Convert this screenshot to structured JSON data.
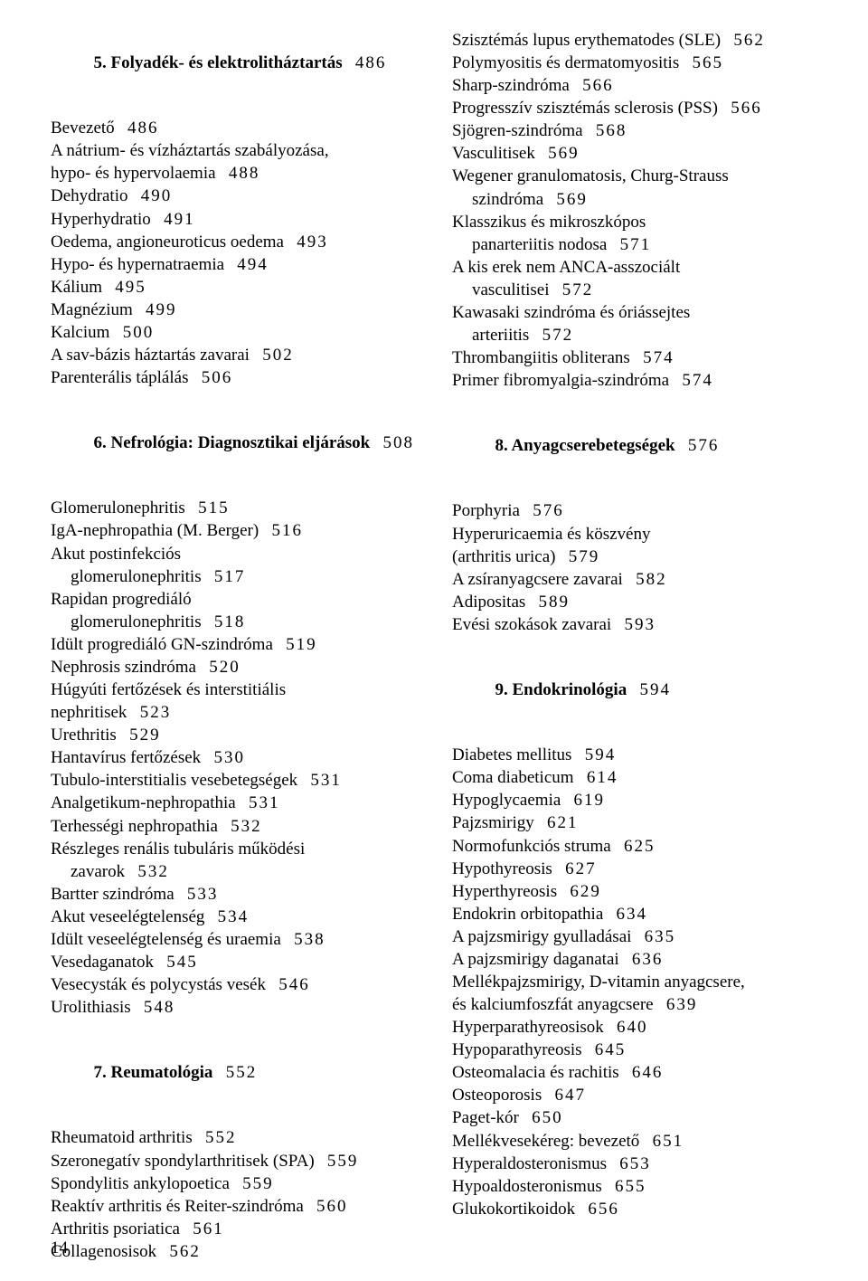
{
  "left": {
    "sec5": {
      "title": "5. Folyadék- és elektrolitháztartás",
      "title_page": "486",
      "items": [
        {
          "t": "Bevezető",
          "p": "486",
          "ind": 0
        },
        {
          "t": "A nátrium- és vízháztartás szabályozása,",
          "ind": 0
        },
        {
          "t": "hypo- és hypervolaemia",
          "p": "488",
          "ind": 1,
          "cont": true
        },
        {
          "t": "Dehydratio",
          "p": "490",
          "ind": 0
        },
        {
          "t": "Hyperhydratio",
          "p": "491",
          "ind": 0
        },
        {
          "t": "Oedema, angioneuroticus oedema",
          "p": "493",
          "ind": 0
        },
        {
          "t": "Hypo- és hypernatraemia",
          "p": "494",
          "ind": 0
        },
        {
          "t": "Kálium",
          "p": "495",
          "ind": 0
        },
        {
          "t": "Magnézium",
          "p": "499",
          "ind": 0
        },
        {
          "t": "Kalcium",
          "p": "500",
          "ind": 0
        },
        {
          "t": "A sav-bázis háztartás zavarai",
          "p": "502",
          "ind": 0
        },
        {
          "t": "Parenterális táplálás",
          "p": "506",
          "ind": 0
        }
      ]
    },
    "sec6": {
      "title": "6. Nefrológia: Diagnosztikai eljárások",
      "title_page": "508",
      "items": [
        {
          "t": "Glomerulonephritis",
          "p": "515",
          "ind": 0
        },
        {
          "t": "IgA-nephropathia (M. Berger)",
          "p": "516",
          "ind": 1
        },
        {
          "t": "Akut postinfekciós",
          "ind": 1
        },
        {
          "t": "glomerulonephritis",
          "p": "517",
          "ind": 2,
          "cont": true
        },
        {
          "t": "Rapidan progrediáló",
          "ind": 1
        },
        {
          "t": "glomerulonephritis",
          "p": "518",
          "ind": 2,
          "cont": true
        },
        {
          "t": "Idült progrediáló GN-szindróma",
          "p": "519",
          "ind": 1
        },
        {
          "t": "Nephrosis szindróma",
          "p": "520",
          "ind": 1
        },
        {
          "t": "Húgyúti fertőzések és interstitiális",
          "ind": 0
        },
        {
          "t": "nephritisek",
          "p": "523",
          "ind": 1,
          "cont": true
        },
        {
          "t": "Urethritis",
          "p": "529",
          "ind": 1
        },
        {
          "t": "Hantavírus fertőzések",
          "p": "530",
          "ind": 1
        },
        {
          "t": "Tubulo-interstitialis vesebetegségek",
          "p": "531",
          "ind": 1
        },
        {
          "t": "Analgetikum-nephropathia",
          "p": "531",
          "ind": 1
        },
        {
          "t": "Terhességi nephropathia",
          "p": "532",
          "ind": 1
        },
        {
          "t": "Részleges renális tubuláris működési",
          "ind": 1
        },
        {
          "t": "zavarok",
          "p": "532",
          "ind": 2,
          "cont": true
        },
        {
          "t": "Bartter szindróma",
          "p": "533",
          "ind": 1
        },
        {
          "t": "Akut veseelégtelenség",
          "p": "534",
          "ind": 0
        },
        {
          "t": "Idült veseelégtelenség és uraemia",
          "p": "538",
          "ind": 0
        },
        {
          "t": "Vesedaganatok",
          "p": "545",
          "ind": 0
        },
        {
          "t": "Vesecysták és polycystás vesék",
          "p": "546",
          "ind": 0
        },
        {
          "t": "Urolithiasis",
          "p": "548",
          "ind": 0
        }
      ]
    },
    "sec7": {
      "title": "7. Reumatológia",
      "title_page": "552",
      "items": [
        {
          "t": "Rheumatoid arthritis",
          "p": "552",
          "ind": 0
        },
        {
          "t": "Szeronegatív spondylarthritisek (SPA)",
          "p": "559",
          "ind": 0
        },
        {
          "t": "Spondylitis ankylopoetica",
          "p": "559",
          "ind": 0
        },
        {
          "t": "Reaktív arthritis és Reiter-szindróma",
          "p": "560",
          "ind": 0
        },
        {
          "t": "Arthritis psoriatica",
          "p": "561",
          "ind": 0
        },
        {
          "t": "Collagenosisok",
          "p": "562",
          "ind": 0
        }
      ]
    }
  },
  "right": {
    "sec7cont": {
      "items": [
        {
          "t": "Szisztémás lupus erythematodes (SLE)",
          "p": "562",
          "ind": 1
        },
        {
          "t": "Polymyositis és dermatomyositis",
          "p": "565",
          "ind": 1
        },
        {
          "t": "Sharp-szindróma",
          "p": "566",
          "ind": 1
        },
        {
          "t": "Progresszív szisztémás sclerosis (PSS)",
          "p": "566",
          "ind": 1
        },
        {
          "t": "Sjögren-szindróma",
          "p": "568",
          "ind": 1
        },
        {
          "t": "Vasculitisek",
          "p": "569",
          "ind": 0
        },
        {
          "t": "Wegener granulomatosis, Churg-Strauss",
          "ind": 1
        },
        {
          "t": "szindróma",
          "p": "569",
          "ind": 2,
          "cont": true
        },
        {
          "t": "Klasszikus és mikroszkópos",
          "ind": 1
        },
        {
          "t": "panarteriitis nodosa",
          "p": "571",
          "ind": 2,
          "cont": true
        },
        {
          "t": "A kis erek nem ANCA-asszociált",
          "ind": 1
        },
        {
          "t": "vasculitisei",
          "p": "572",
          "ind": 2,
          "cont": true
        },
        {
          "t": "Kawasaki szindróma és óriássejtes",
          "ind": 1
        },
        {
          "t": "arteriitis",
          "p": "572",
          "ind": 2,
          "cont": true
        },
        {
          "t": "Thrombangiitis obliterans",
          "p": "574",
          "ind": 0
        },
        {
          "t": "Primer fibromyalgia-szindróma",
          "p": "574",
          "ind": 0
        }
      ]
    },
    "sec8": {
      "title": "8. Anyagcserebetegségek",
      "title_page": "576",
      "items": [
        {
          "t": "Porphyria",
          "p": "576",
          "ind": 0
        },
        {
          "t": "Hyperuricaemia és köszvény",
          "ind": 0
        },
        {
          "t": "(arthritis urica)",
          "p": "579",
          "ind": 1,
          "cont": true
        },
        {
          "t": "A zsíranyagcsere zavarai",
          "p": "582",
          "ind": 0
        },
        {
          "t": "Adipositas",
          "p": "589",
          "ind": 0
        },
        {
          "t": "Evési szokások zavarai",
          "p": "593",
          "ind": 0
        }
      ]
    },
    "sec9": {
      "title": "9. Endokrinológia",
      "title_page": "594",
      "items": [
        {
          "t": "Diabetes mellitus",
          "p": "594",
          "ind": 0
        },
        {
          "t": "Coma diabeticum",
          "p": "614",
          "ind": 1
        },
        {
          "t": "Hypoglycaemia",
          "p": "619",
          "ind": 1
        },
        {
          "t": "Pajzsmirigy",
          "p": "621",
          "ind": 0
        },
        {
          "t": "Normofunkciós struma",
          "p": "625",
          "ind": 1
        },
        {
          "t": "Hypothyreosis",
          "p": "627",
          "ind": 1
        },
        {
          "t": "Hyperthyreosis",
          "p": "629",
          "ind": 1
        },
        {
          "t": "Endokrin orbitopathia",
          "p": "634",
          "ind": 1
        },
        {
          "t": "A pajzsmirigy gyulladásai",
          "p": "635",
          "ind": 1
        },
        {
          "t": "A pajzsmirigy daganatai",
          "p": "636",
          "ind": 1
        },
        {
          "t": "Mellékpajzsmirigy, D-vitamin anyagcsere,",
          "ind": 0
        },
        {
          "t": "és kalciumfoszfát anyagcsere",
          "p": "639",
          "ind": 1,
          "cont": true
        },
        {
          "t": "Hyperparathyreosisok",
          "p": "640",
          "ind": 1
        },
        {
          "t": "Hypoparathyreosis",
          "p": "645",
          "ind": 1
        },
        {
          "t": "Osteomalacia és rachitis",
          "p": "646",
          "ind": 0
        },
        {
          "t": "Osteoporosis",
          "p": "647",
          "ind": 0
        },
        {
          "t": "Paget-kór",
          "p": "650",
          "ind": 0
        },
        {
          "t": "Mellékvesekéreg: bevezető",
          "p": "651",
          "ind": 0
        },
        {
          "t": "Hyperaldosteronismus",
          "p": "653",
          "ind": 1
        },
        {
          "t": "Hypoaldosteronismus",
          "p": "655",
          "ind": 1
        },
        {
          "t": "Glukokortikoidok",
          "p": "656",
          "ind": 1
        }
      ]
    }
  },
  "page_number": "14"
}
